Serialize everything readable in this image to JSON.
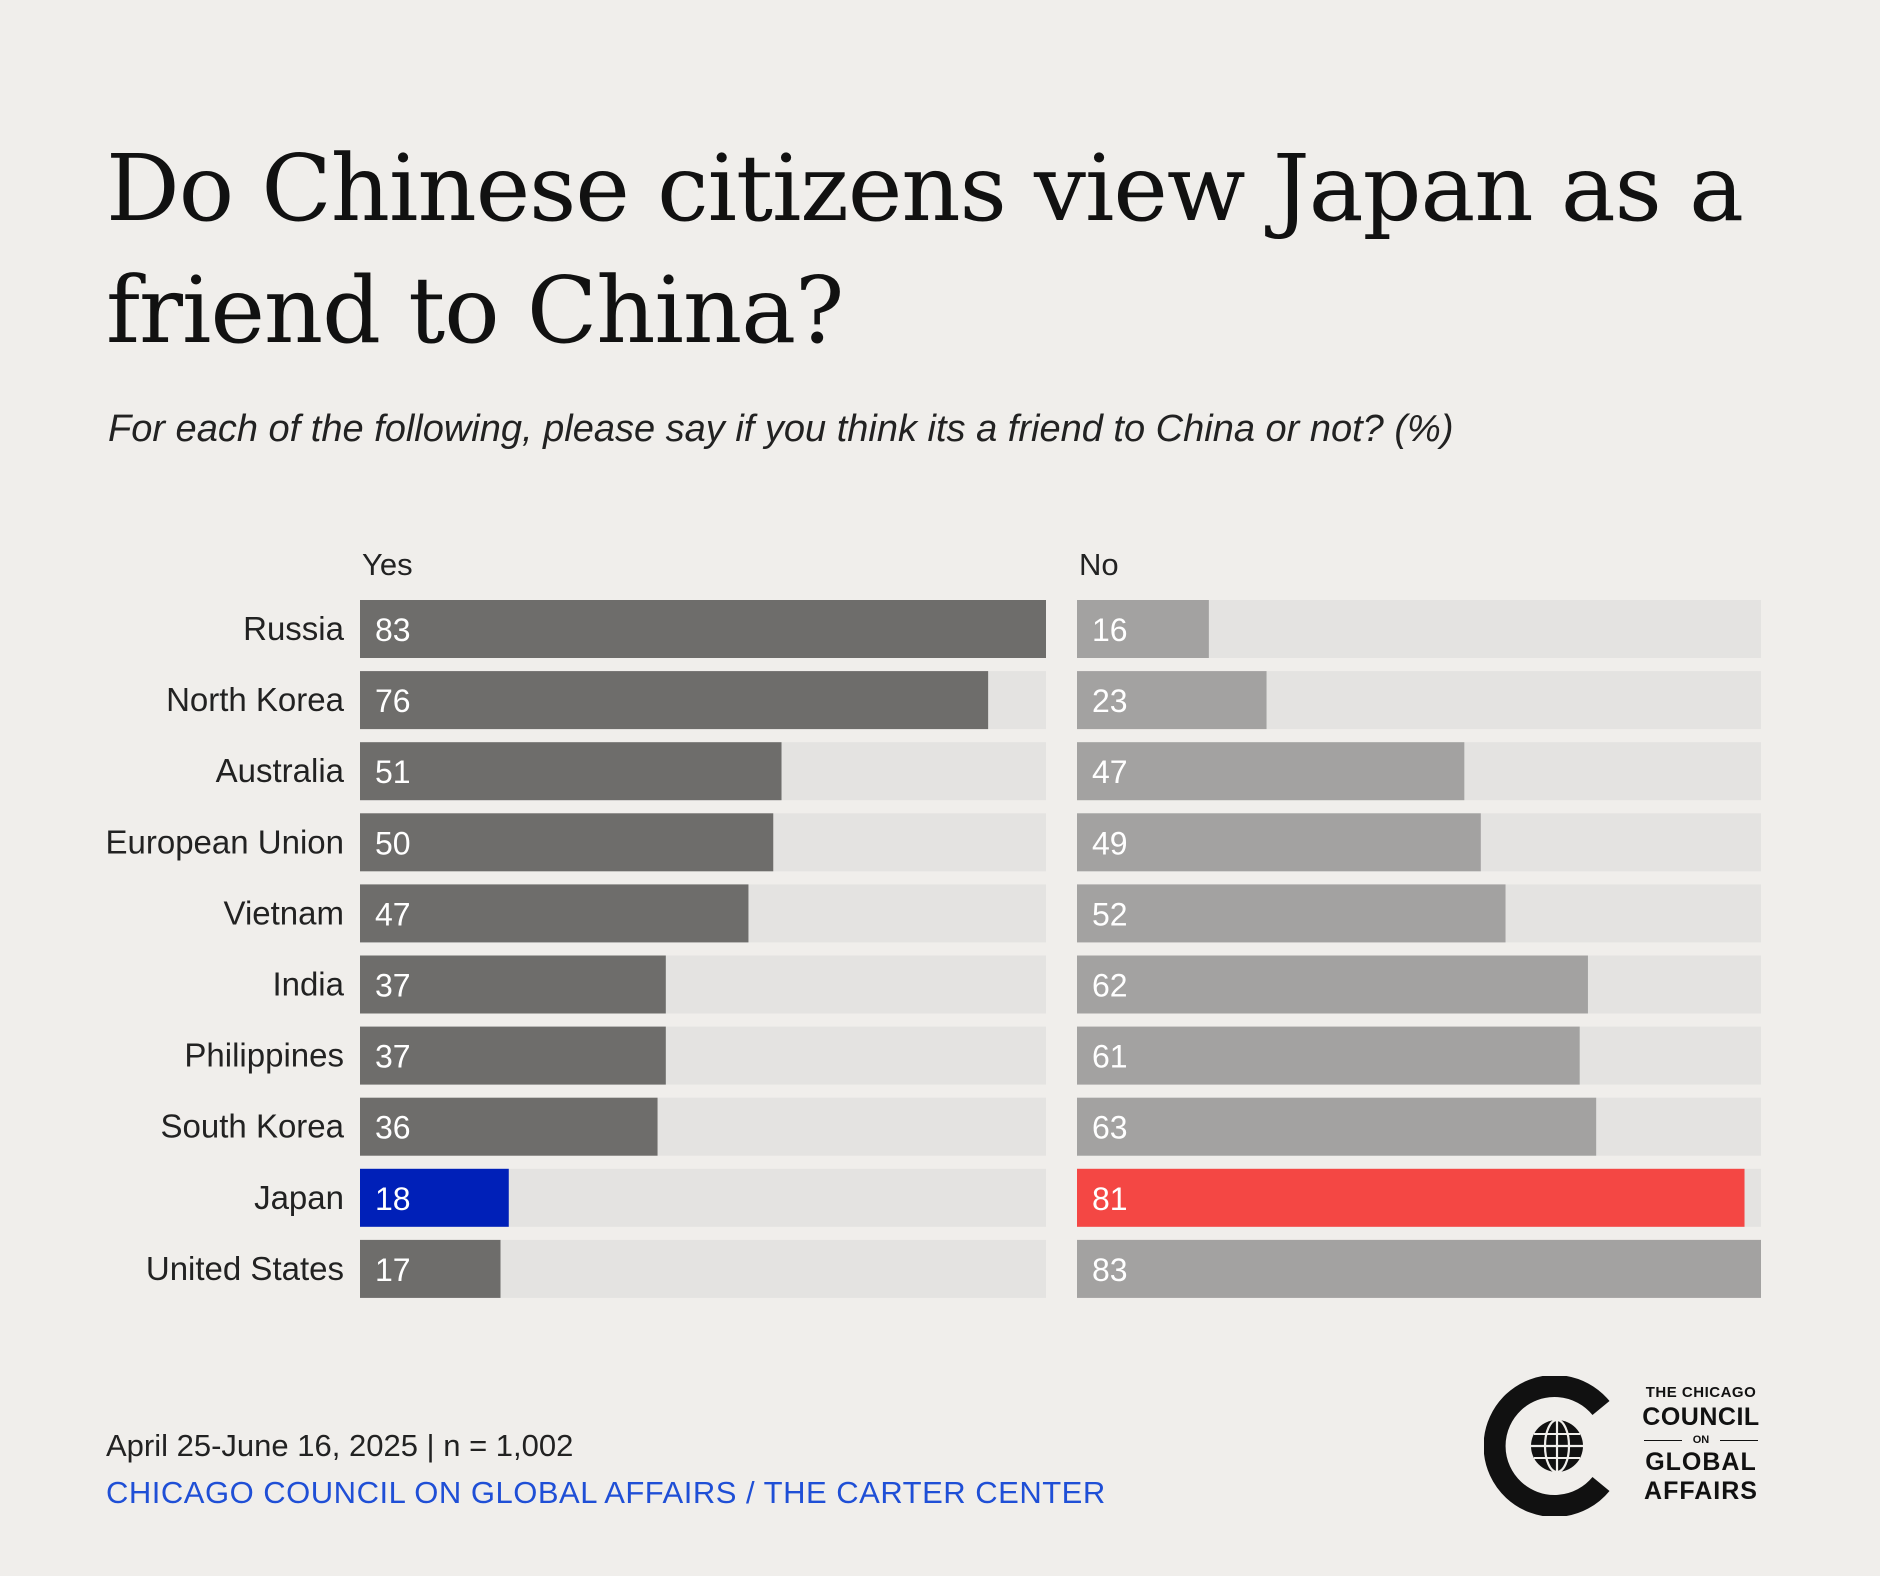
{
  "title": "Do Chinese citizens view Japan as a friend to China?",
  "subtitle": "For each of the following, please say if you think its a friend to China or not? (%)",
  "chart_data": {
    "type": "bar",
    "orientation": "horizontal",
    "title": "Do Chinese citizens view Japan as a friend to China?",
    "subtitle": "For each of the following, please say if you think its a friend to China or not? (%)",
    "categories": [
      "Russia",
      "North Korea",
      "Australia",
      "European Union",
      "Vietnam",
      "India",
      "Philippines",
      "South Korea",
      "Japan",
      "United States"
    ],
    "series": [
      {
        "name": "Yes",
        "values": [
          83,
          76,
          51,
          50,
          47,
          37,
          37,
          36,
          18,
          17
        ],
        "color": "#6e6d6b",
        "highlight_color": "#0020b8"
      },
      {
        "name": "No",
        "values": [
          16,
          23,
          47,
          49,
          52,
          62,
          61,
          63,
          81,
          83
        ],
        "color": "#a3a2a1",
        "highlight_color": "#f44744"
      }
    ],
    "highlight_category": "Japan",
    "track_color": "#e4e3e1",
    "xlim": [
      0,
      83
    ]
  },
  "footer": {
    "date_line": "April 25-June 16, 2025 | n = 1,002",
    "source": "CHICAGO COUNCIL ON GLOBAL AFFAIRS / THE CARTER CENTER"
  },
  "logo": {
    "line1": "THE CHICAGO",
    "line2": "COUNCIL",
    "line3": "ON",
    "line4": "GLOBAL",
    "line5": "AFFAIRS",
    "icon": "globe-icon"
  }
}
